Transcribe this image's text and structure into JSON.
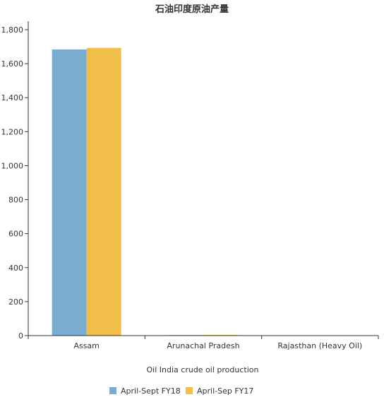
{
  "chart_data": {
    "type": "bar",
    "title": "石油印度原油产量",
    "xlabel": "Oil India crude oil production",
    "ylabel": "",
    "categories": [
      "Assam",
      "Arunachal Pradesh",
      "Rajasthan (Heavy Oil)"
    ],
    "series": [
      {
        "name": "April-Sept FY18",
        "values": [
          1684,
          3,
          1
        ],
        "color": "#7aaccf"
      },
      {
        "name": "April-Sep FY17",
        "values": [
          1693,
          4,
          1
        ],
        "color": "#f1be4a"
      }
    ],
    "ylim": [
      0,
      1850
    ],
    "yticks": [
      0,
      200,
      400,
      600,
      800,
      1000,
      1200,
      1400,
      1600,
      1800
    ],
    "ytick_labels": [
      "0",
      "200",
      "400",
      "600",
      "800",
      "1,000",
      "1,200",
      "1,400",
      "1,600",
      "1,800"
    ],
    "grid": false,
    "legend_position": "bottom-center"
  }
}
